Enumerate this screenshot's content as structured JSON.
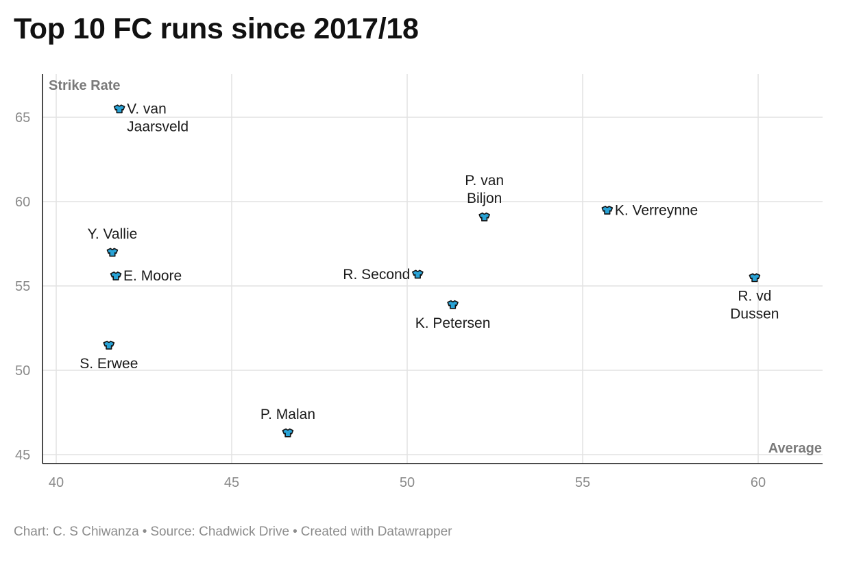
{
  "title": "Top 10 FC runs since 2017/18",
  "footer": {
    "chart_credit": "Chart: C. S Chiwanza",
    "source": "Source: Chadwick Drive",
    "created_with": "Created with Datawrapper",
    "separator": "•"
  },
  "chart_data": {
    "type": "scatter",
    "title": "Top 10 FC runs since 2017/18",
    "xlabel": "Average",
    "ylabel": "Strike Rate",
    "xlim": [
      40,
      62
    ],
    "ylim": [
      45,
      67
    ],
    "x_ticks": [
      40,
      45,
      50,
      55,
      60
    ],
    "y_ticks": [
      45,
      50,
      55,
      60,
      65
    ],
    "grid": true,
    "marker": "shirt-icon",
    "marker_color": "#29a3d6",
    "points": [
      {
        "label": "V. van Jaarsveld",
        "lines": [
          "V. van",
          "Jaarsveld"
        ],
        "x": 41.8,
        "y": 65.5,
        "label_pos": "right"
      },
      {
        "label": "P. van Biljon",
        "lines": [
          "P. van",
          "Biljon"
        ],
        "x": 52.2,
        "y": 59.1,
        "label_pos": "top"
      },
      {
        "label": "K. Verreynne",
        "lines": [
          "K. Verreynne"
        ],
        "x": 55.7,
        "y": 59.5,
        "label_pos": "right"
      },
      {
        "label": "Y. Vallie",
        "lines": [
          "Y. Vallie"
        ],
        "x": 41.6,
        "y": 57.0,
        "label_pos": "top"
      },
      {
        "label": "E. Moore",
        "lines": [
          "E. Moore"
        ],
        "x": 41.7,
        "y": 55.6,
        "label_pos": "right"
      },
      {
        "label": "R. Second",
        "lines": [
          "R. Second"
        ],
        "x": 50.3,
        "y": 55.7,
        "label_pos": "left"
      },
      {
        "label": "R. vd Dussen",
        "lines": [
          "R. vd",
          "Dussen"
        ],
        "x": 59.9,
        "y": 55.5,
        "label_pos": "bottom"
      },
      {
        "label": "K. Petersen",
        "lines": [
          "K. Petersen"
        ],
        "x": 51.3,
        "y": 53.9,
        "label_pos": "bottom"
      },
      {
        "label": "S. Erwee",
        "lines": [
          "S. Erwee"
        ],
        "x": 41.5,
        "y": 51.5,
        "label_pos": "bottom"
      },
      {
        "label": "P. Malan",
        "lines": [
          "P. Malan"
        ],
        "x": 46.6,
        "y": 46.3,
        "label_pos": "top"
      }
    ]
  }
}
